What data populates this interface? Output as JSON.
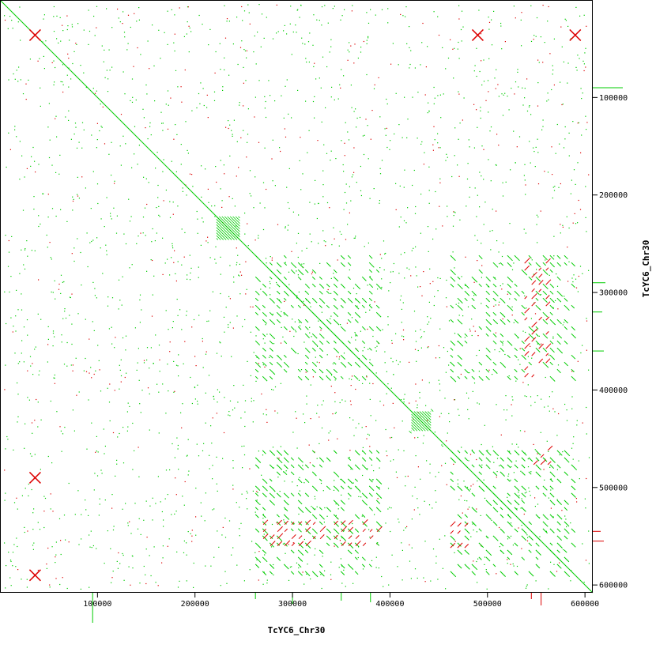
{
  "chart_data": {
    "type": "scatter",
    "subtype": "dot-plot (self-alignment)",
    "xlabel": "TcYC6_Chr30",
    "ylabel": "TcYC6_Chr30",
    "xlim": [
      0,
      608000
    ],
    "ylim": [
      0,
      608000
    ],
    "y_inverted": true,
    "grid": false,
    "x_ticks": [
      100000,
      200000,
      300000,
      400000,
      500000,
      600000
    ],
    "y_ticks": [
      100000,
      200000,
      300000,
      400000,
      500000,
      600000
    ],
    "colors": {
      "forward": "#00cc00",
      "reverse": "#dd0000"
    },
    "series": [
      {
        "orientation": "forward",
        "segments": [
          {
            "x0": 0,
            "x1": 608000,
            "y0": 0,
            "y1": 608000
          },
          {
            "x0": 222000,
            "x1": 246000,
            "y0": 222000,
            "y1": 246000
          },
          {
            "x0": 422000,
            "x1": 442000,
            "y0": 422000,
            "y1": 442000
          }
        ],
        "blocks": [
          {
            "x": [
              262000,
              390000
            ],
            "y": [
              262000,
              390000
            ]
          },
          {
            "x": [
              262000,
              390000
            ],
            "y": [
              462000,
              590000
            ]
          },
          {
            "x": [
              462000,
              590000
            ],
            "y": [
              262000,
              390000
            ]
          },
          {
            "x": [
              462000,
              590000
            ],
            "y": [
              462000,
              590000
            ]
          }
        ]
      },
      {
        "orientation": "reverse",
        "blocks": [
          {
            "x": [
              538000,
              560000
            ],
            "y": [
              270000,
              390000
            ]
          },
          {
            "x": [
              270000,
              390000
            ],
            "y": [
              538000,
              560000
            ]
          },
          {
            "x": [
              462000,
              480000
            ],
            "y": [
              540000,
              565000
            ]
          },
          {
            "x": [
              540000,
              565000
            ],
            "y": [
              462000,
              480000
            ]
          }
        ],
        "crosses": [
          {
            "x": 36000,
            "y": 36000
          },
          {
            "x": 490000,
            "y": 36000
          },
          {
            "x": 590000,
            "y": 36000
          },
          {
            "x": 36000,
            "y": 490000
          },
          {
            "x": 36000,
            "y": 590000
          }
        ]
      }
    ],
    "margin_bars": {
      "x_bottom": [
        {
          "x": 95000,
          "len": 38,
          "color": "#00cc00"
        },
        {
          "x": 262000,
          "len": 8,
          "color": "#00cc00"
        },
        {
          "x": 300000,
          "len": 14,
          "color": "#00cc00"
        },
        {
          "x": 350000,
          "len": 10,
          "color": "#00cc00"
        },
        {
          "x": 380000,
          "len": 12,
          "color": "#00cc00"
        },
        {
          "x": 545000,
          "len": 8,
          "color": "#dd0000"
        },
        {
          "x": 555000,
          "len": 16,
          "color": "#dd0000"
        }
      ],
      "y_right": [
        {
          "y": 90000,
          "len": 38,
          "color": "#00cc00"
        },
        {
          "y": 290000,
          "len": 16,
          "color": "#00cc00"
        },
        {
          "y": 320000,
          "len": 12,
          "color": "#00cc00"
        },
        {
          "y": 360000,
          "len": 14,
          "color": "#00cc00"
        },
        {
          "y": 545000,
          "len": 10,
          "color": "#dd0000"
        },
        {
          "y": 555000,
          "len": 14,
          "color": "#dd0000"
        }
      ]
    }
  }
}
